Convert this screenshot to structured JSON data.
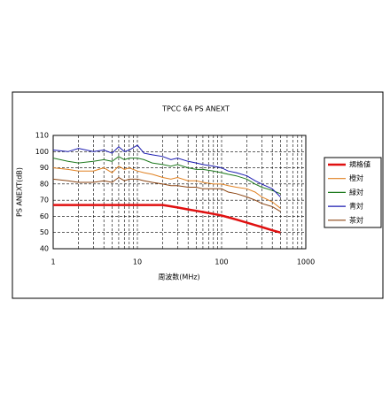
{
  "chart_data": {
    "type": "line",
    "title": "TPCC 6A  PS ANEXT",
    "xlabel": "周波数(MHz)",
    "ylabel": "PS ANEXT(dB)",
    "x": [
      1,
      1.5,
      2,
      3,
      4,
      5,
      6,
      7,
      8,
      10,
      12,
      15,
      20,
      25,
      30,
      40,
      50,
      60,
      80,
      100,
      120,
      150,
      200,
      250,
      300,
      400,
      500
    ],
    "series": [
      {
        "name": "規格値",
        "color": "#e01010",
        "values": [
          67,
          67,
          67,
          67,
          67,
          67,
          67,
          67,
          67,
          67,
          67,
          67,
          67,
          66.2,
          65.5,
          64.3,
          63.4,
          62.7,
          61.5,
          60.5,
          59.4,
          58,
          56.1,
          54.6,
          53.4,
          51.4,
          50
        ]
      },
      {
        "name": "橙対",
        "color": "#e08020",
        "values": [
          90,
          89,
          88,
          88,
          90,
          87,
          91,
          89,
          90,
          88,
          87,
          86,
          84,
          83,
          84,
          82,
          82,
          81,
          80,
          80,
          79,
          78,
          77,
          75,
          72,
          69,
          65
        ]
      },
      {
        "name": "緑対",
        "color": "#1e7a1e",
        "values": [
          96,
          94,
          93,
          94,
          95,
          94,
          97,
          95,
          96,
          96,
          95,
          93,
          92,
          91,
          92,
          90,
          89,
          89,
          88,
          87,
          86,
          85,
          83,
          80,
          78,
          76,
          74
        ]
      },
      {
        "name": "青対",
        "color": "#1a1ab0",
        "values": [
          101,
          100,
          102,
          100,
          101,
          99,
          103,
          100,
          101,
          104,
          99,
          98,
          97,
          95,
          96,
          94,
          93,
          92,
          91,
          90,
          88,
          87,
          85,
          82,
          80,
          77,
          72
        ]
      },
      {
        "name": "茶対",
        "color": "#8b4513",
        "values": [
          83,
          82,
          81,
          81,
          82,
          81,
          84,
          82,
          83,
          83,
          82,
          81,
          80,
          79,
          79,
          78,
          78,
          77,
          77,
          77,
          75,
          74,
          72,
          70,
          68,
          66,
          63
        ]
      }
    ],
    "log_x": true,
    "xlim": [
      1,
      1000
    ],
    "xticks": [
      1,
      10,
      100,
      1000
    ],
    "ylim": [
      40,
      110
    ],
    "yticks": [
      40,
      50,
      60,
      70,
      80,
      90,
      100,
      110
    ],
    "grid": true,
    "legend": "right"
  }
}
